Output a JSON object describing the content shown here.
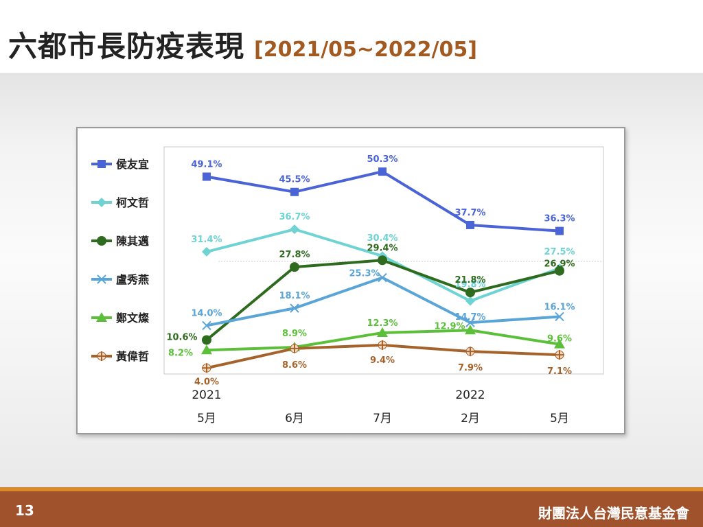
{
  "slide": {
    "title": "六都市長防疫表現",
    "range": "[2021/05~2022/05]",
    "page_number": "13",
    "organization": "財團法人台灣民意基金會"
  },
  "colors": {
    "title": "#222222",
    "range": "#a35a20",
    "footer": "#a0522d",
    "footer_accent": "#d98a2b"
  },
  "chart_data": {
    "type": "line",
    "title": "",
    "xlabel": "",
    "ylabel": "",
    "categories": [
      "5月",
      "6月",
      "7月",
      "2月",
      "5月"
    ],
    "year_labels": [
      "2021",
      "",
      "",
      "2022",
      ""
    ],
    "ylim": [
      0,
      55
    ],
    "legend": "left",
    "grid": false,
    "series": [
      {
        "name": "侯友宜",
        "values": [
          49.1,
          45.5,
          50.3,
          37.7,
          36.3
        ],
        "color": "#4a63d6",
        "marker": "square",
        "labels": [
          "49.1%",
          "45.5%",
          "50.3%",
          "37.7%",
          "36.3%"
        ]
      },
      {
        "name": "柯文哲",
        "values": [
          31.4,
          36.7,
          30.4,
          19.8,
          27.5
        ],
        "color": "#6fd3d3",
        "marker": "diamond",
        "labels": [
          "31.4%",
          "36.7%",
          "30.4%",
          "19.8%",
          "27.5%"
        ]
      },
      {
        "name": "陳其邁",
        "values": [
          10.6,
          27.8,
          29.4,
          21.8,
          26.9
        ],
        "color": "#2e6b1e",
        "marker": "circle",
        "labels": [
          "10.6%",
          "27.8%",
          "29.4%",
          "21.8%",
          "26.9%"
        ]
      },
      {
        "name": "盧秀燕",
        "values": [
          14.0,
          18.1,
          25.3,
          14.7,
          16.1
        ],
        "color": "#5aa5d8",
        "marker": "x",
        "labels": [
          "14.0%",
          "18.1%",
          "25.3%",
          "14.7%",
          "16.1%"
        ]
      },
      {
        "name": "鄭文燦",
        "values": [
          8.2,
          8.9,
          12.3,
          12.9,
          9.6
        ],
        "color": "#5cbf3a",
        "marker": "triangle",
        "labels": [
          "8.2%",
          "8.9%",
          "12.3%",
          "12.9%",
          "9.6%"
        ]
      },
      {
        "name": "黃偉哲",
        "values": [
          4.0,
          8.6,
          9.4,
          7.9,
          7.1
        ],
        "color": "#a5622b",
        "marker": "plus",
        "labels": [
          "4.0%",
          "8.6%",
          "9.4%",
          "7.9%",
          "7.1%"
        ]
      }
    ]
  }
}
